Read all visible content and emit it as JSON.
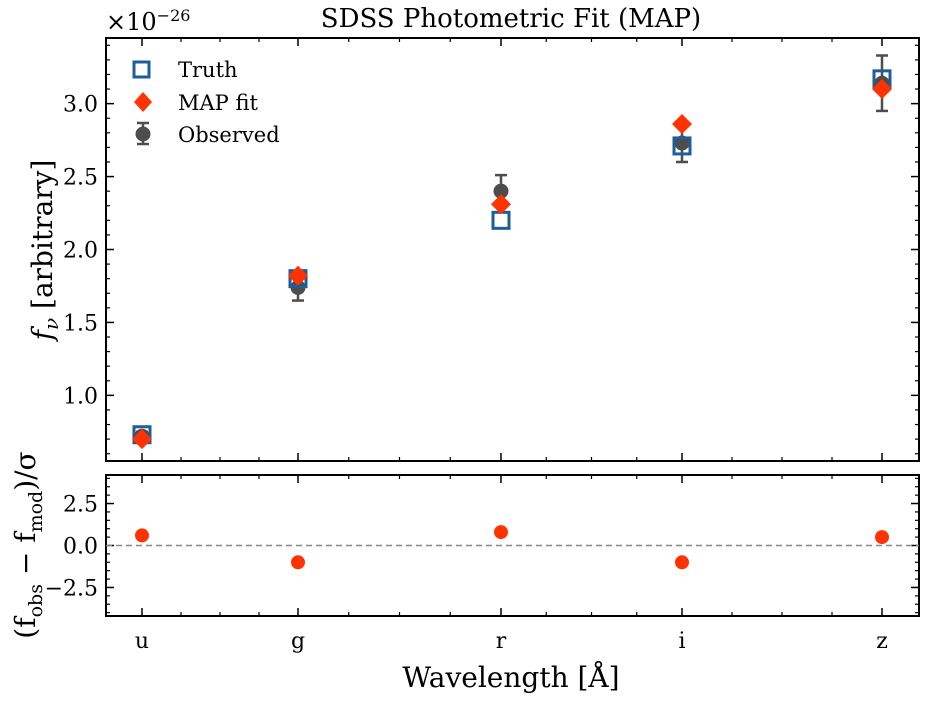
{
  "chart_data": [
    {
      "type": "scatter",
      "title": "SDSS Photometric Fit (MAP)",
      "ylabel": "f_ν [arbitrary]",
      "offset_text": "×10^{−26}",
      "categories": [
        "u",
        "g",
        "r",
        "i",
        "z"
      ],
      "ylim": [
        0.55,
        3.45
      ],
      "yticks": [
        "1.0",
        "1.5",
        "2.0",
        "2.5",
        "3.0"
      ],
      "grid": false,
      "legend_position": "top-left",
      "series": [
        {
          "name": "Truth",
          "marker": "square-open",
          "color": "#1f5d99",
          "values": [
            0.73,
            1.8,
            2.2,
            2.71,
            3.17
          ]
        },
        {
          "name": "MAP fit",
          "marker": "diamond",
          "color": "#ff3300",
          "values": [
            0.7,
            1.82,
            2.31,
            2.86,
            3.1
          ]
        },
        {
          "name": "Observed",
          "marker": "circle-errorbar",
          "color": "#4d4d4d",
          "values": [
            0.72,
            1.74,
            2.4,
            2.73,
            3.14
          ],
          "errors": [
            0.03,
            0.09,
            0.11,
            0.13,
            0.19
          ]
        }
      ]
    },
    {
      "type": "scatter",
      "ylabel": "(f_obs − f_mod)/σ",
      "xlabel": "Wavelength [Å]",
      "categories": [
        "u",
        "g",
        "r",
        "i",
        "z"
      ],
      "ylim": [
        -4.2,
        4.2
      ],
      "yticks": [
        "−2.5",
        "0.0",
        "2.5"
      ],
      "reference_line": 0.0,
      "reference_line_style": "dashed",
      "series": [
        {
          "name": "",
          "marker": "circle",
          "color": "#ff3300",
          "values": [
            0.6,
            -1.0,
            0.8,
            -1.0,
            0.5
          ]
        }
      ]
    }
  ],
  "legend": [
    {
      "label": "Truth"
    },
    {
      "label": "MAP fit"
    },
    {
      "label": "Observed"
    }
  ]
}
